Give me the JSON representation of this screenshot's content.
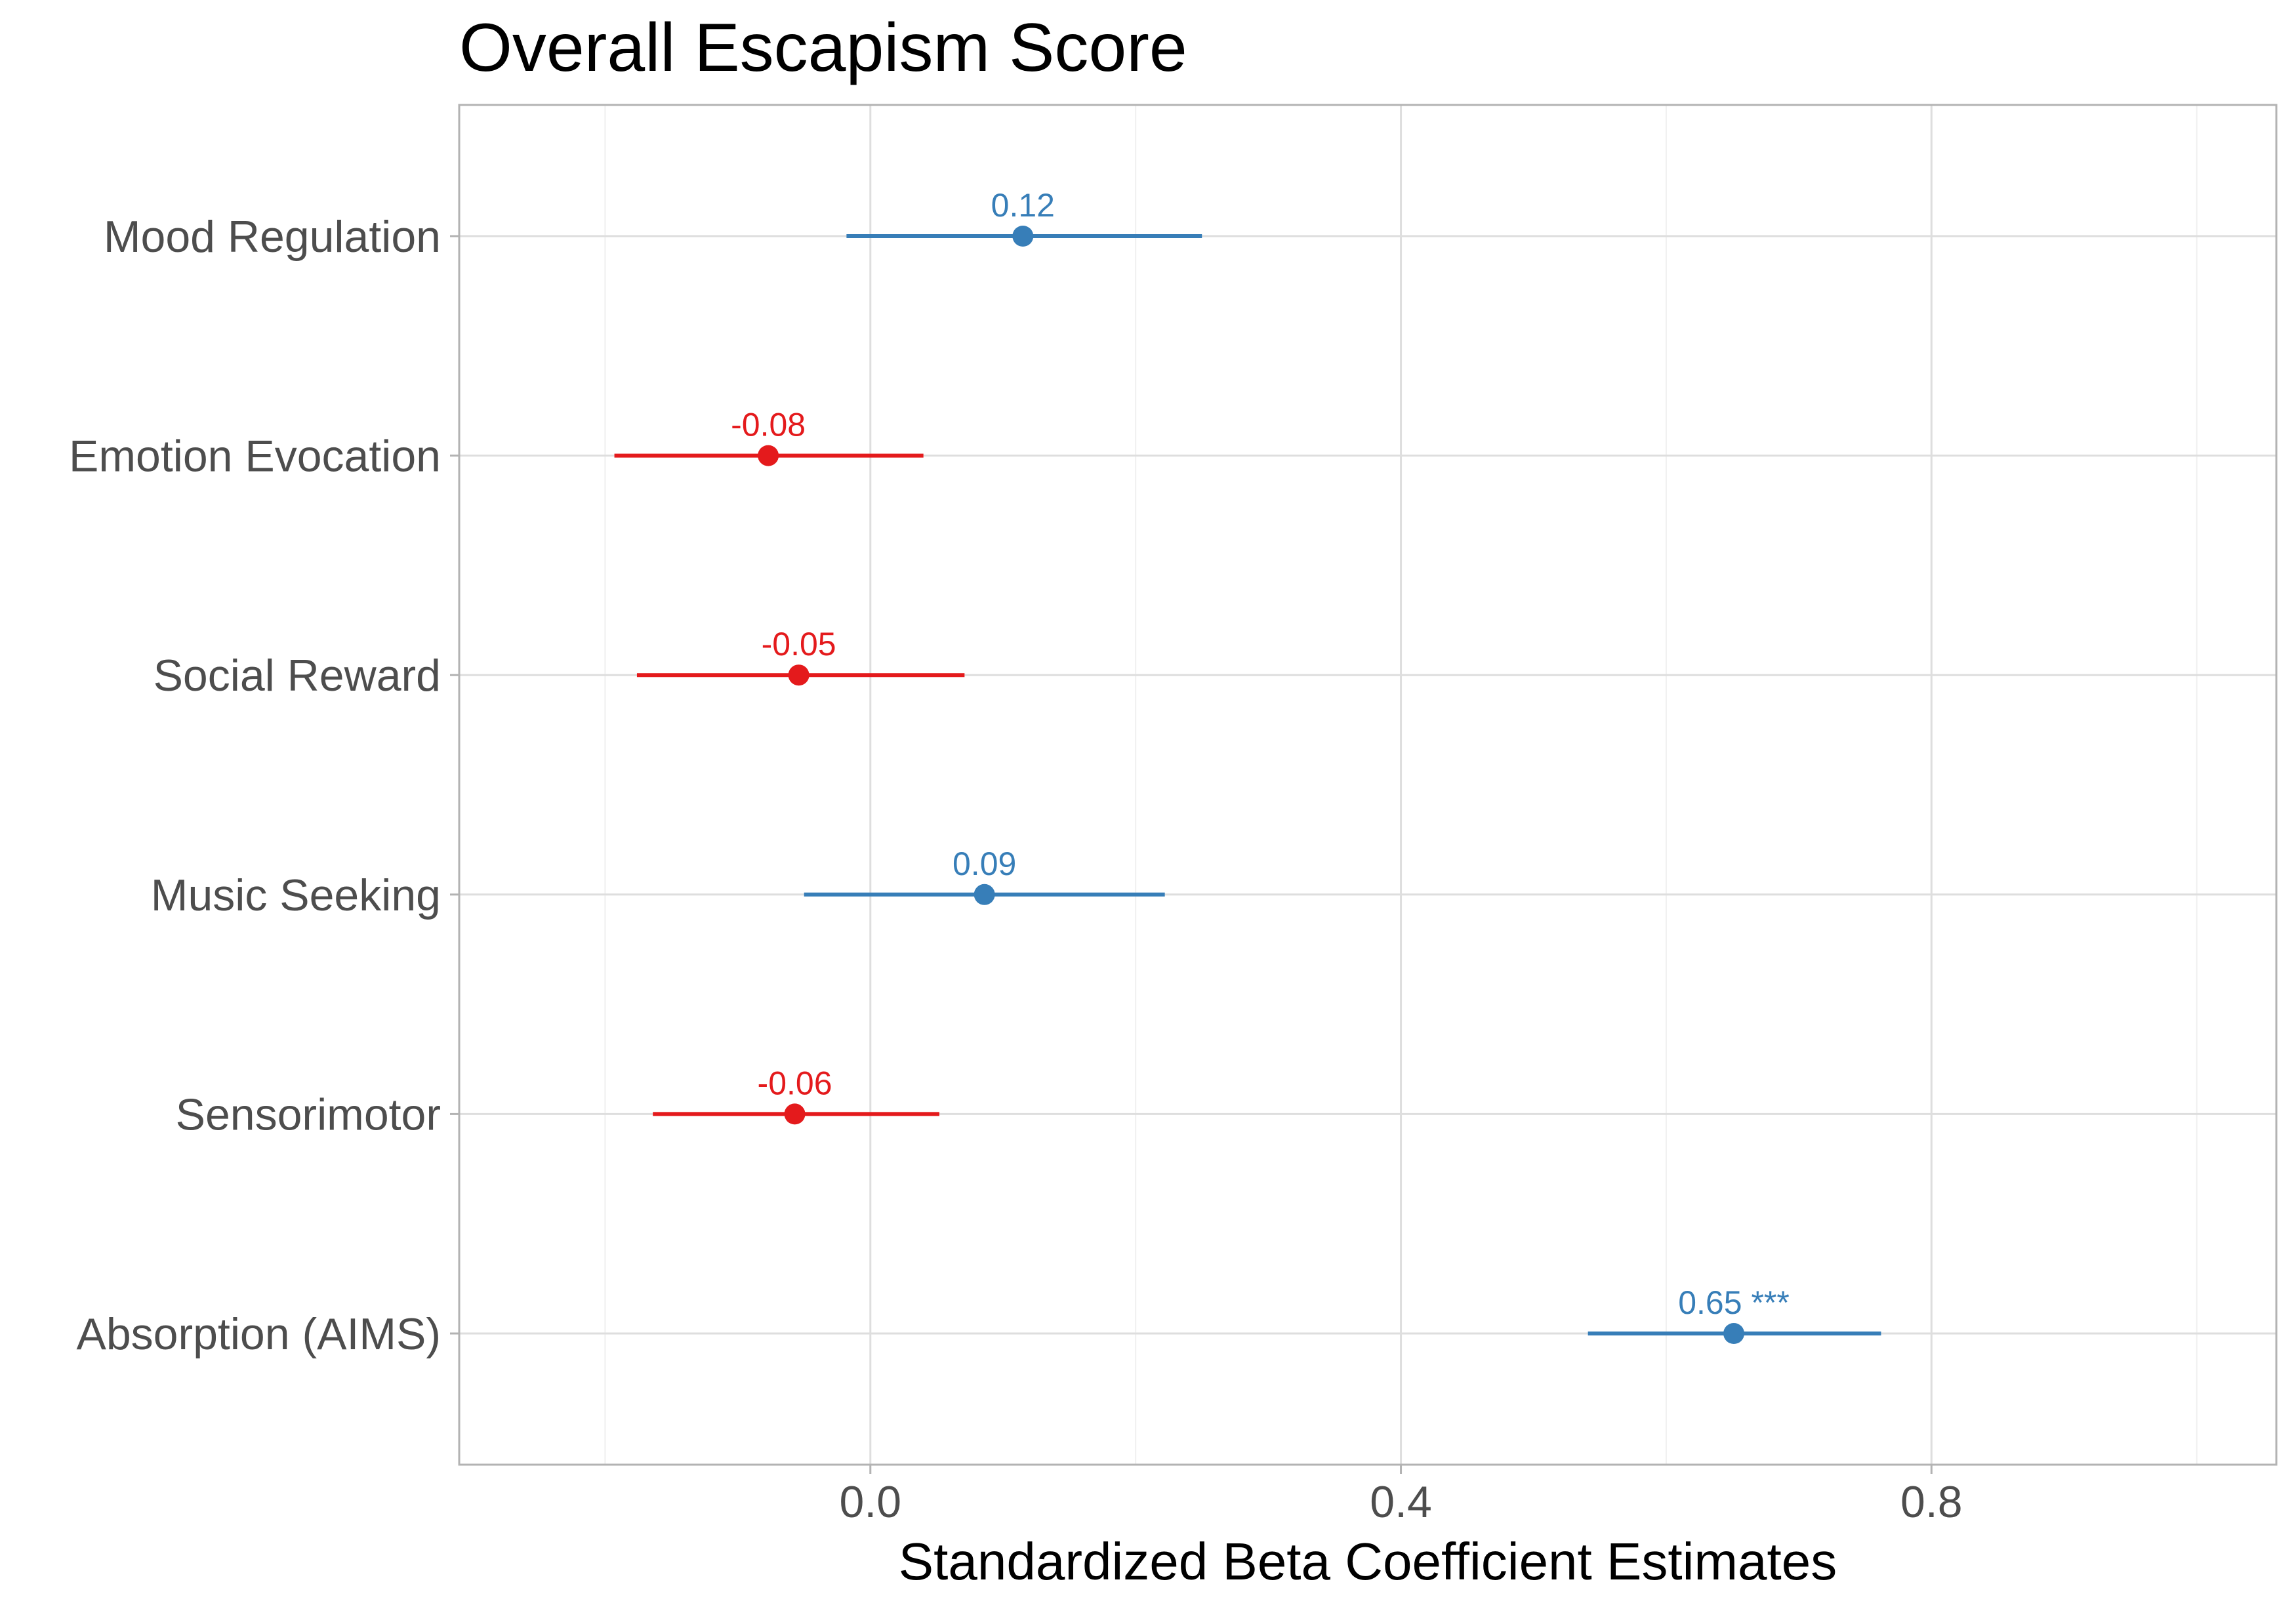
{
  "chart_data": {
    "type": "forest",
    "title": "Overall Escapism Score",
    "xlabel": "Standardized Beta Coefficient Estimates",
    "ylabel": "",
    "xlim": [
      -0.31,
      1.06
    ],
    "xticks": [
      0.0,
      0.4,
      0.8
    ],
    "xtick_labels": [
      "0.0",
      "0.4",
      "0.8"
    ],
    "grid": true,
    "colors": {
      "positive": "#377eb8",
      "negative": "#e41a1c"
    },
    "rows": [
      {
        "label": "Mood Regulation",
        "estimate": 0.115,
        "low": -0.018,
        "high": 0.25,
        "text": "0.12"
      },
      {
        "label": "Emotion Evocation",
        "estimate": -0.077,
        "low": -0.193,
        "high": 0.04,
        "text": "-0.08"
      },
      {
        "label": "Social Reward",
        "estimate": -0.054,
        "low": -0.176,
        "high": 0.071,
        "text": "-0.05"
      },
      {
        "label": "Music Seeking",
        "estimate": 0.086,
        "low": -0.05,
        "high": 0.222,
        "text": "0.09"
      },
      {
        "label": "Sensorimotor",
        "estimate": -0.057,
        "low": -0.164,
        "high": 0.052,
        "text": "-0.06"
      },
      {
        "label": "Absorption (AIMS)",
        "estimate": 0.651,
        "low": 0.541,
        "high": 0.762,
        "text": "0.65 ***"
      }
    ]
  }
}
